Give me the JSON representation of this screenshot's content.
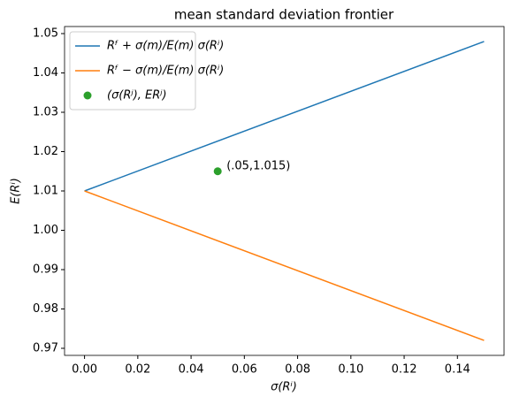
{
  "chart_data": {
    "type": "line",
    "title": "mean standard deviation frontier",
    "x_label": "σ(Rⁱ)",
    "y_label": "E(Rⁱ)",
    "series": [
      {
        "name": "Rᶠ + σ(m)/E(m) σ(Rⁱ)",
        "color": "#1f77b4",
        "type": "line",
        "x": [
          0,
          0.15
        ],
        "values": [
          1.01,
          1.048
        ]
      },
      {
        "name": "Rᶠ − σ(m)/E(m) σ(Rⁱ)",
        "color": "#ff7f0e",
        "type": "line",
        "x": [
          0,
          0.15
        ],
        "values": [
          1.01,
          0.972
        ]
      },
      {
        "name": "(σ(Rʲ), ERʲ)",
        "color": "#2ca02c",
        "type": "scatter",
        "x": [
          0.05
        ],
        "values": [
          1.015
        ]
      }
    ],
    "annotations": [
      {
        "text": "(.05,1.015)",
        "x": 0.05,
        "y": 1.015
      }
    ],
    "xlim": [
      -0.0075,
      0.1575
    ],
    "ylim": [
      0.9682,
      1.0518
    ],
    "xticks": [
      {
        "value": 0,
        "label": "0.00"
      },
      0.02,
      0.04,
      0.06,
      0.08,
      {
        "value": 0.1,
        "label": "0.10"
      },
      0.12,
      0.14
    ],
    "yticks": [
      0.97,
      0.98,
      0.99,
      {
        "value": 1.0,
        "label": "1.00"
      },
      1.01,
      1.02,
      1.03,
      1.04,
      1.05
    ],
    "legend": "upper-left",
    "grid": false
  }
}
